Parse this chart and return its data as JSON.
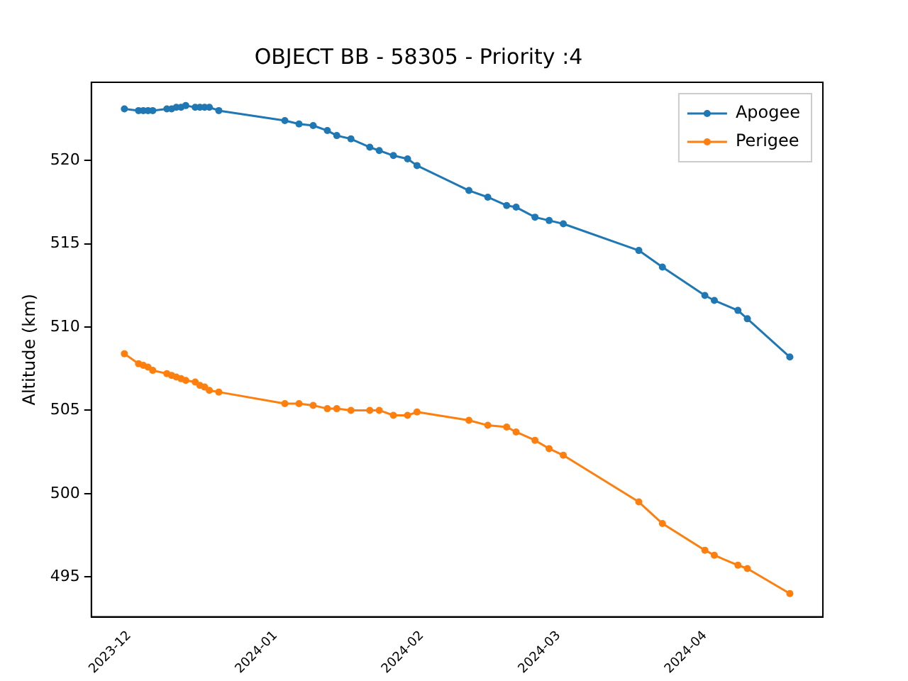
{
  "chart_data": {
    "type": "line",
    "title": "OBJECT BB - 58305 - Priority :4",
    "ylabel": "Altitude (km)",
    "x": [
      "2023-11-30",
      "2023-12-03",
      "2023-12-04",
      "2023-12-05",
      "2023-12-06",
      "2023-12-09",
      "2023-12-10",
      "2023-12-11",
      "2023-12-12",
      "2023-12-13",
      "2023-12-15",
      "2023-12-16",
      "2023-12-17",
      "2023-12-18",
      "2023-12-20",
      "2024-01-03",
      "2024-01-06",
      "2024-01-09",
      "2024-01-12",
      "2024-01-14",
      "2024-01-17",
      "2024-01-21",
      "2024-01-23",
      "2024-01-26",
      "2024-01-29",
      "2024-01-31",
      "2024-02-11",
      "2024-02-15",
      "2024-02-19",
      "2024-02-21",
      "2024-02-25",
      "2024-02-28",
      "2024-03-02",
      "2024-03-18",
      "2024-03-23",
      "2024-04-01",
      "2024-04-03",
      "2024-04-08",
      "2024-04-10",
      "2024-04-19"
    ],
    "series": [
      {
        "name": "Apogee",
        "color": "#1f77b4",
        "values": [
          523.1,
          523.0,
          523.0,
          523.0,
          523.0,
          523.1,
          523.1,
          523.2,
          523.2,
          523.3,
          523.2,
          523.2,
          523.2,
          523.2,
          523.0,
          522.4,
          522.2,
          522.1,
          521.8,
          521.5,
          521.3,
          520.8,
          520.6,
          520.3,
          520.1,
          519.7,
          518.2,
          517.8,
          517.3,
          517.2,
          516.6,
          516.4,
          516.2,
          514.6,
          513.6,
          511.9,
          511.6,
          511.0,
          510.5,
          508.2
        ]
      },
      {
        "name": "Perigee",
        "color": "#ff7f0e",
        "values": [
          508.4,
          507.8,
          507.7,
          507.6,
          507.4,
          507.2,
          507.1,
          507.0,
          506.9,
          506.8,
          506.7,
          506.5,
          506.4,
          506.2,
          506.1,
          505.4,
          505.4,
          505.3,
          505.1,
          505.1,
          505.0,
          505.0,
          505.0,
          504.7,
          504.7,
          504.9,
          504.4,
          504.1,
          504.0,
          503.7,
          503.2,
          502.7,
          502.3,
          499.5,
          498.2,
          496.6,
          496.3,
          495.7,
          495.5,
          494.0
        ]
      }
    ],
    "xlim": [
      "2023-11-23",
      "2024-04-26"
    ],
    "xticks": [
      "2023-12",
      "2024-01",
      "2024-02",
      "2024-03",
      "2024-04"
    ],
    "ylim": [
      492.6,
      524.7
    ],
    "yticks": [
      495,
      500,
      505,
      510,
      515,
      520
    ],
    "marker": "circle",
    "line_style": "solid",
    "legend": "top right",
    "grid": false
  }
}
